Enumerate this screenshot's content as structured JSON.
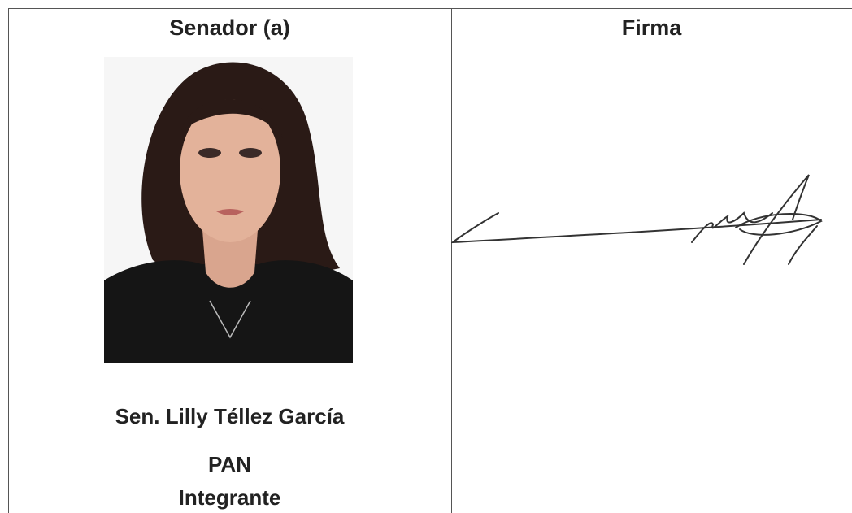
{
  "table": {
    "header": [
      "Senador (a)",
      "Firma"
    ],
    "rows": [
      {
        "name": "Sen. Lilly Téllez García",
        "party": "PAN",
        "role": "Integrante"
      }
    ]
  }
}
